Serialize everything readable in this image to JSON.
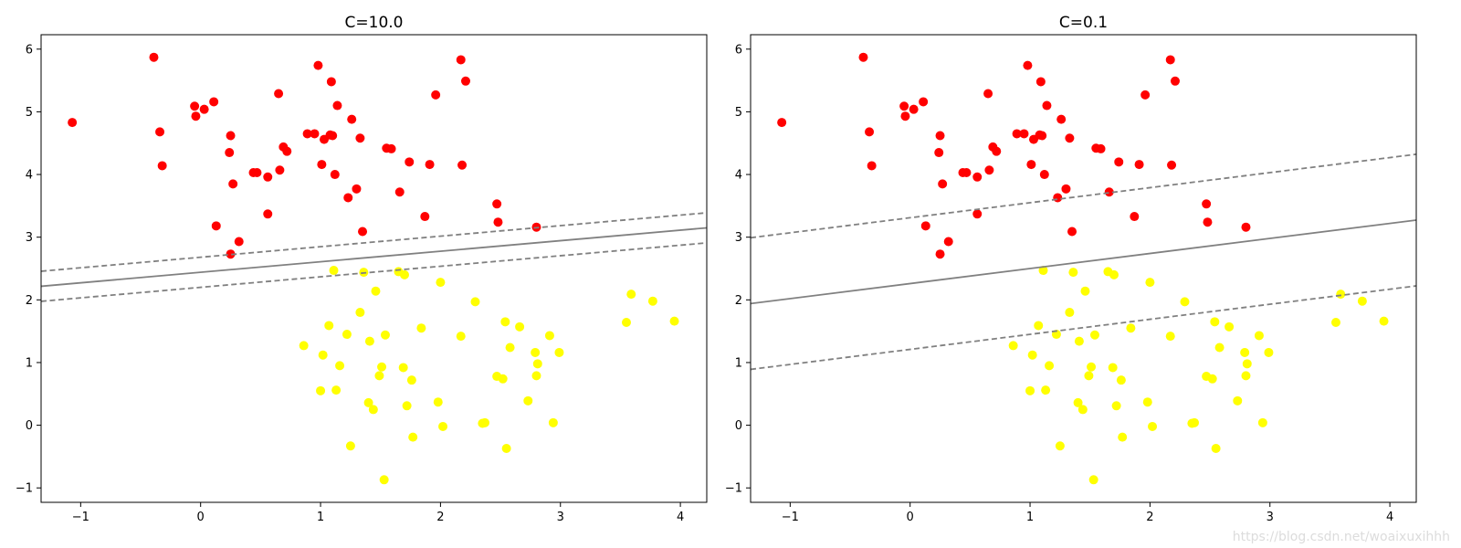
{
  "watermark": "https://blog.csdn.net/woaixuxihhh",
  "colors": {
    "class_0": "#ff0000",
    "class_1": "#ffff00",
    "boundary": "#808080"
  },
  "chart_data": [
    {
      "type": "scatter",
      "title": "C=10.0",
      "xlabel": "",
      "ylabel": "",
      "xlim": [
        -1.33,
        4.22
      ],
      "ylim": [
        -1.23,
        6.23
      ],
      "xticks": [
        -1,
        0,
        1,
        2,
        3,
        4
      ],
      "yticks": [
        -1,
        0,
        1,
        2,
        3,
        4,
        5,
        6
      ],
      "grid": false,
      "decision_boundary": {
        "slope": 0.168,
        "intercept": 2.44,
        "style": "solid"
      },
      "margins": [
        {
          "slope": 0.168,
          "intercept": 2.68,
          "style": "dashed"
        },
        {
          "slope": 0.168,
          "intercept": 2.2,
          "style": "dashed"
        }
      ],
      "point_set": "shared"
    },
    {
      "type": "scatter",
      "title": "C=0.1",
      "xlabel": "",
      "ylabel": "",
      "xlim": [
        -1.33,
        4.22
      ],
      "ylim": [
        -1.23,
        6.23
      ],
      "xticks": [
        -1,
        0,
        1,
        2,
        3,
        4
      ],
      "yticks": [
        -1,
        0,
        1,
        2,
        3,
        4,
        5,
        6
      ],
      "grid": false,
      "decision_boundary": {
        "slope": 0.24,
        "intercept": 2.26,
        "style": "solid"
      },
      "margins": [
        {
          "slope": 0.24,
          "intercept": 3.31,
          "style": "dashed"
        },
        {
          "slope": 0.24,
          "intercept": 1.21,
          "style": "dashed"
        }
      ],
      "point_set": "shared"
    }
  ],
  "points": {
    "class_0": [
      [
        -1.07,
        4.83
      ],
      [
        -0.39,
        5.87
      ],
      [
        -0.34,
        4.68
      ],
      [
        -0.32,
        4.14
      ],
      [
        -0.05,
        5.09
      ],
      [
        -0.04,
        4.93
      ],
      [
        0.03,
        5.04
      ],
      [
        0.11,
        5.16
      ],
      [
        0.13,
        3.18
      ],
      [
        0.25,
        4.62
      ],
      [
        0.24,
        4.35
      ],
      [
        0.27,
        3.85
      ],
      [
        0.25,
        2.73
      ],
      [
        0.32,
        2.93
      ],
      [
        0.44,
        4.03
      ],
      [
        0.47,
        4.03
      ],
      [
        0.56,
        3.96
      ],
      [
        0.56,
        3.37
      ],
      [
        0.65,
        5.29
      ],
      [
        0.66,
        4.07
      ],
      [
        0.69,
        4.44
      ],
      [
        0.72,
        4.37
      ],
      [
        0.89,
        4.65
      ],
      [
        0.95,
        4.65
      ],
      [
        0.98,
        5.74
      ],
      [
        1.01,
        4.16
      ],
      [
        1.03,
        4.56
      ],
      [
        1.08,
        4.63
      ],
      [
        1.09,
        5.48
      ],
      [
        1.1,
        4.62
      ],
      [
        1.12,
        4.0
      ],
      [
        1.14,
        5.1
      ],
      [
        1.23,
        3.63
      ],
      [
        1.26,
        4.88
      ],
      [
        1.3,
        3.77
      ],
      [
        1.33,
        4.58
      ],
      [
        1.35,
        3.09
      ],
      [
        1.55,
        4.42
      ],
      [
        1.59,
        4.41
      ],
      [
        1.66,
        3.72
      ],
      [
        1.74,
        4.2
      ],
      [
        1.87,
        3.33
      ],
      [
        1.91,
        4.16
      ],
      [
        1.96,
        5.27
      ],
      [
        2.17,
        5.83
      ],
      [
        2.18,
        4.15
      ],
      [
        2.21,
        5.49
      ],
      [
        2.47,
        3.53
      ],
      [
        2.48,
        3.24
      ],
      [
        2.8,
        3.16
      ]
    ],
    "class_1": [
      [
        0.86,
        1.27
      ],
      [
        1.0,
        0.55
      ],
      [
        1.02,
        1.12
      ],
      [
        1.07,
        1.59
      ],
      [
        1.11,
        2.47
      ],
      [
        1.13,
        0.56
      ],
      [
        1.16,
        0.95
      ],
      [
        1.22,
        1.45
      ],
      [
        1.25,
        -0.33
      ],
      [
        1.33,
        1.8
      ],
      [
        1.36,
        2.44
      ],
      [
        1.4,
        0.36
      ],
      [
        1.41,
        1.34
      ],
      [
        1.44,
        0.25
      ],
      [
        1.46,
        2.14
      ],
      [
        1.49,
        0.79
      ],
      [
        1.51,
        0.93
      ],
      [
        1.54,
        1.44
      ],
      [
        1.53,
        -0.87
      ],
      [
        1.65,
        2.45
      ],
      [
        1.69,
        0.92
      ],
      [
        1.7,
        2.4
      ],
      [
        1.72,
        0.31
      ],
      [
        1.76,
        0.72
      ],
      [
        1.77,
        -0.19
      ],
      [
        1.84,
        1.55
      ],
      [
        1.98,
        0.37
      ],
      [
        2.0,
        2.28
      ],
      [
        2.02,
        -0.02
      ],
      [
        2.17,
        1.42
      ],
      [
        2.29,
        1.97
      ],
      [
        2.35,
        0.03
      ],
      [
        2.37,
        0.04
      ],
      [
        2.47,
        0.78
      ],
      [
        2.52,
        0.74
      ],
      [
        2.54,
        1.65
      ],
      [
        2.55,
        -0.37
      ],
      [
        2.58,
        1.24
      ],
      [
        2.66,
        1.57
      ],
      [
        2.73,
        0.39
      ],
      [
        2.79,
        1.16
      ],
      [
        2.8,
        0.79
      ],
      [
        2.81,
        0.98
      ],
      [
        2.91,
        1.43
      ],
      [
        2.94,
        0.04
      ],
      [
        2.99,
        1.16
      ],
      [
        3.55,
        1.64
      ],
      [
        3.59,
        2.09
      ],
      [
        3.77,
        1.98
      ],
      [
        3.95,
        1.66
      ]
    ]
  }
}
